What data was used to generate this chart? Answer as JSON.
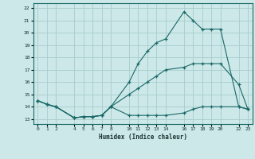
{
  "xlabel": "Humidex (Indice chaleur)",
  "background_color": "#cce8e8",
  "grid_color": "#a8cccc",
  "line_color": "#1a6868",
  "hours": [
    0,
    1,
    2,
    4,
    5,
    6,
    7,
    8,
    10,
    11,
    12,
    13,
    14,
    16,
    17,
    18,
    19,
    20,
    22,
    23
  ],
  "line1": [
    14.5,
    14.2,
    14.0,
    13.1,
    13.2,
    13.2,
    13.3,
    14.0,
    13.3,
    13.3,
    13.3,
    13.3,
    13.3,
    13.5,
    13.8,
    14.0,
    14.0,
    14.0,
    14.0,
    13.8
  ],
  "line2": [
    14.5,
    14.2,
    14.0,
    13.1,
    13.2,
    13.2,
    13.3,
    14.0,
    15.0,
    15.5,
    16.0,
    16.5,
    17.0,
    17.2,
    17.5,
    17.5,
    17.5,
    17.5,
    15.8,
    13.8
  ],
  "line3": [
    14.5,
    14.2,
    14.0,
    13.1,
    13.2,
    13.2,
    13.3,
    14.0,
    16.0,
    17.5,
    18.5,
    19.2,
    19.5,
    21.7,
    21.0,
    20.3,
    20.3,
    20.3,
    14.0,
    13.8
  ],
  "xticks": [
    0,
    1,
    2,
    4,
    5,
    6,
    7,
    8,
    10,
    11,
    12,
    13,
    14,
    16,
    17,
    18,
    19,
    20,
    22,
    23
  ],
  "yticks": [
    13,
    14,
    15,
    16,
    17,
    18,
    19,
    20,
    21,
    22
  ],
  "ylim": [
    12.6,
    22.4
  ],
  "xlim": [
    -0.5,
    23.5
  ]
}
